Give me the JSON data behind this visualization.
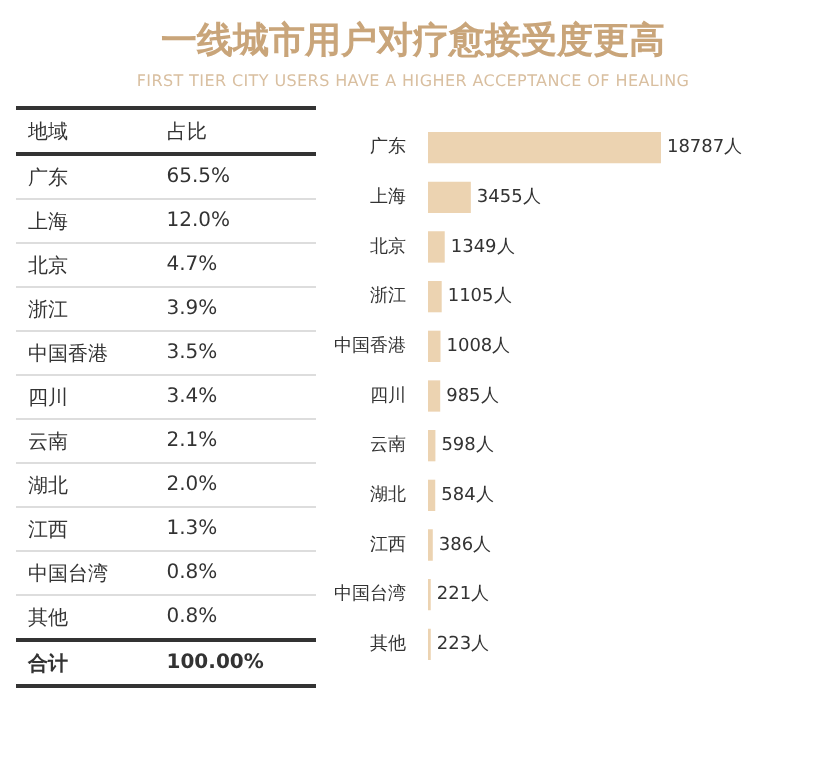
{
  "chart_data": [
    {
      "type": "other",
      "title": "一线城市用户对疗愈接受度更高",
      "subtitle": "FIRST TIER CITY USERS HAVE A HIGHER ACCEPTANCE OF HEALING",
      "xlabel": "地域",
      "ylabel": "占比",
      "categories": [
        "广东",
        "上海",
        "北京",
        "浙江",
        "中国香港",
        "四川",
        "云南",
        "湖北",
        "江西",
        "中国台湾",
        "其他",
        "合计"
      ],
      "value_labels": [
        "65.5%",
        "12.0%",
        "4.7%",
        "3.9%",
        "3.5%",
        "3.4%",
        "2.1%",
        "2.0%",
        "1.3%",
        "0.8%",
        "0.8%",
        "100.00%"
      ]
    },
    {
      "type": "bar",
      "orientation": "horizontal",
      "color": "#ecd3b1",
      "grid": false,
      "categories": [
        "广东",
        "上海",
        "北京",
        "浙江",
        "中国香港",
        "四川",
        "云南",
        "湖北",
        "江西",
        "中国台湾",
        "其他"
      ],
      "values": [
        18787,
        3455,
        1349,
        1105,
        1008,
        985,
        598,
        584,
        386,
        221,
        223
      ],
      "value_labels": [
        "18787人",
        "3455人",
        "1349人",
        "1105人",
        "1008人",
        "985人",
        "598人",
        "584人",
        "386人",
        "221人",
        "223人"
      ]
    }
  ]
}
